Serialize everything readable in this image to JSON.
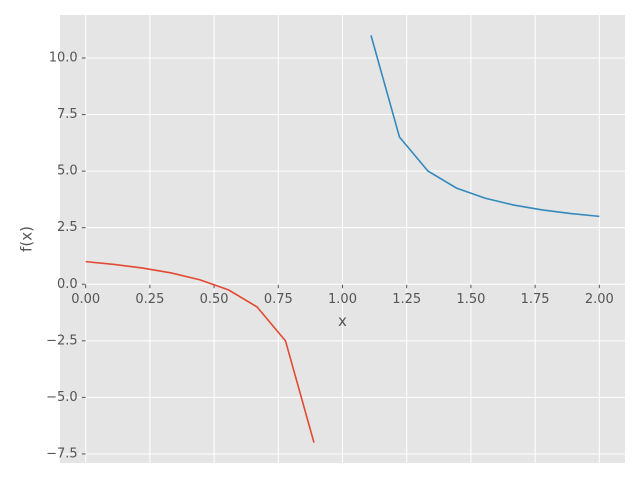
{
  "chart_data": {
    "type": "line",
    "x_label": "x",
    "y_label": "f(x)",
    "series": [
      {
        "color": "#E24A33",
        "x": [
          0,
          0.111,
          0.222,
          0.333,
          0.444,
          0.556,
          0.667,
          0.778,
          0.889
        ],
        "values": [
          1,
          0.875,
          0.714,
          0.5,
          0.2,
          -0.25,
          -1,
          -2.5,
          -7
        ]
      },
      {
        "color": "#348ABD",
        "x": [
          1.111,
          1.222,
          1.333,
          1.444,
          1.556,
          1.667,
          1.778,
          1.889,
          2
        ],
        "values": [
          11,
          6.5,
          5,
          4.25,
          3.8,
          3.5,
          3.286,
          3.125,
          3
        ]
      }
    ],
    "xlim": [
      -0.1,
      2.1
    ],
    "ylim": [
      -7.9,
      11.9
    ],
    "xticks": [
      {
        "value": 0,
        "label": "0.00"
      },
      {
        "value": 0.25,
        "label": "0.25"
      },
      {
        "value": 0.5,
        "label": "0.50"
      },
      {
        "value": 0.75,
        "label": "0.75"
      },
      {
        "value": 1,
        "label": "1.00"
      },
      {
        "value": 1.25,
        "label": "1.25"
      },
      {
        "value": 1.5,
        "label": "1.50"
      },
      {
        "value": 1.75,
        "label": "1.75"
      },
      {
        "value": 2,
        "label": "2.00"
      }
    ],
    "yticks": [
      {
        "value": -7.5,
        "label": "−7.5"
      },
      {
        "value": -5,
        "label": "−5.0"
      },
      {
        "value": -2.5,
        "label": "−2.5"
      },
      {
        "value": 0,
        "label": "0.0"
      },
      {
        "value": 2.5,
        "label": "2.5"
      },
      {
        "value": 5,
        "label": "5.0"
      },
      {
        "value": 7.5,
        "label": "7.5"
      },
      {
        "value": 10,
        "label": "10.0"
      }
    ],
    "grid": true,
    "background": "#E5E5E5"
  }
}
